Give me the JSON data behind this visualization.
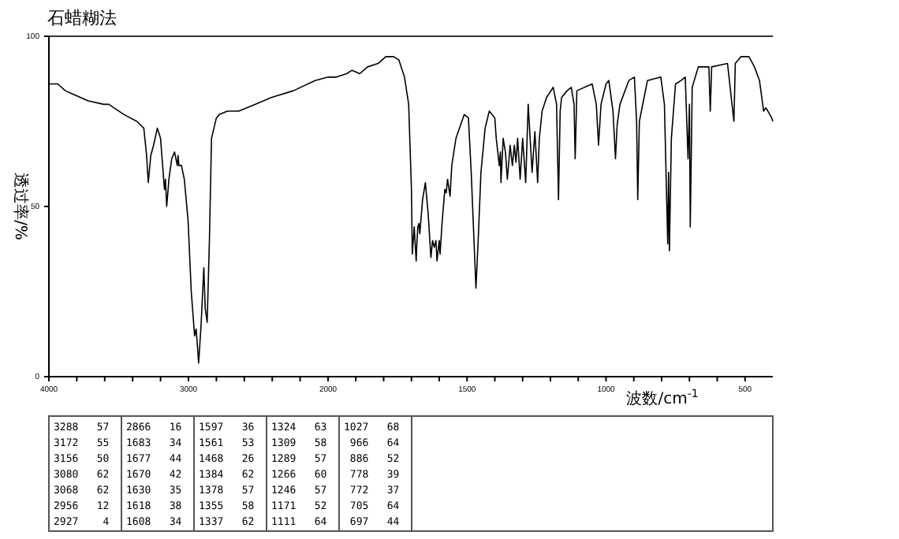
{
  "chart_data": [
    {
      "type": "line",
      "title": "石蜡糊法",
      "ylabel": "透过率/%",
      "xlim": [
        4000,
        2000
      ],
      "ylim": [
        0,
        100
      ],
      "xticks": [
        4000,
        {
          "value": 3800,
          "label": null
        },
        {
          "value": 3600,
          "label": null
        },
        {
          "value": 3400,
          "label": null
        },
        {
          "value": 3200,
          "label": null
        },
        3000,
        {
          "value": 2800,
          "label": null
        },
        {
          "value": 2600,
          "label": null
        },
        {
          "value": 2400,
          "label": null
        },
        {
          "value": 2200,
          "label": null
        }
      ],
      "yticks": [
        0,
        50,
        100
      ],
      "marker": "none",
      "line_style": "solid",
      "series": [
        {
          "color": "#000000",
          "x": [
            4000,
            3937,
            3882,
            3828,
            3718,
            3608,
            3571,
            3462,
            3370,
            3320,
            3300,
            3288,
            3270,
            3250,
            3223,
            3200,
            3172,
            3165,
            3156,
            3140,
            3120,
            3100,
            3080,
            3075,
            3068,
            3050,
            3030,
            3003,
            2980,
            2956,
            2945,
            2927,
            2910,
            2890,
            2880,
            2866,
            2850,
            2835,
            2800,
            2779,
            2721,
            2640,
            2523,
            2407,
            2248,
            2093,
            2000
          ],
          "values": [
            86,
            86,
            84,
            83,
            81,
            80,
            80,
            77,
            75,
            73,
            65,
            57,
            65,
            68,
            73,
            70,
            55,
            58,
            50,
            58,
            64,
            66,
            62,
            65,
            62,
            62,
            58,
            46,
            25,
            12,
            14,
            4,
            15,
            32,
            20,
            16,
            40,
            70,
            76,
            77,
            78,
            78,
            80,
            82,
            84,
            87,
            88
          ]
        }
      ]
    },
    {
      "type": "line",
      "xlabel": "波数/cm$^{-1}$",
      "xlim": [
        2000,
        400
      ],
      "ylim": [
        0,
        100
      ],
      "tick_labels": "x",
      "xticks": [
        2000,
        {
          "value": 1900,
          "label": null
        },
        {
          "value": 1800,
          "label": null
        },
        {
          "value": 1700,
          "label": null
        },
        {
          "value": 1600,
          "label": null
        },
        1500,
        {
          "value": 1400,
          "label": null
        },
        {
          "value": 1300,
          "label": null
        },
        {
          "value": 1200,
          "label": null
        },
        {
          "value": 1100,
          "label": null
        },
        1000,
        {
          "value": 900,
          "label": null
        },
        {
          "value": 800,
          "label": null
        },
        {
          "value": 700,
          "label": null
        },
        {
          "value": 600,
          "label": null
        },
        500
      ],
      "marker": "none",
      "line_style": "solid",
      "series": [
        {
          "color": "#000000",
          "x": [
            2000,
            1970,
            1933,
            1914,
            1886,
            1858,
            1820,
            1792,
            1764,
            1745,
            1725,
            1710,
            1700,
            1697,
            1690,
            1683,
            1680,
            1677,
            1673,
            1670,
            1660,
            1650,
            1640,
            1630,
            1624,
            1618,
            1612,
            1608,
            1600,
            1597,
            1590,
            1580,
            1575,
            1570,
            1561,
            1555,
            1540,
            1510,
            1495,
            1485,
            1475,
            1468,
            1460,
            1450,
            1435,
            1420,
            1400,
            1395,
            1384,
            1380,
            1378,
            1370,
            1362,
            1355,
            1345,
            1337,
            1330,
            1324,
            1318,
            1309,
            1300,
            1289,
            1280,
            1266,
            1256,
            1246,
            1240,
            1230,
            1214,
            1190,
            1178,
            1171,
            1165,
            1160,
            1140,
            1125,
            1115,
            1111,
            1105,
            1050,
            1035,
            1027,
            1018,
            1000,
            990,
            975,
            966,
            960,
            950,
            918,
            898,
            890,
            886,
            880,
            851,
            803,
            790,
            778,
            775,
            772,
            765,
            750,
            730,
            715,
            705,
            700,
            697,
            690,
            668,
            630,
            625,
            620,
            563,
            540,
            535,
            515,
            486,
            466,
            448,
            433,
            425,
            404,
            400
          ],
          "values": [
            88,
            88,
            89,
            90,
            89,
            91,
            92,
            94,
            94,
            93,
            88,
            80,
            55,
            36,
            44,
            34,
            40,
            44,
            45,
            42,
            52,
            57,
            48,
            35,
            40,
            38,
            40,
            34,
            40,
            36,
            45,
            55,
            54,
            58,
            53,
            62,
            70,
            77,
            76,
            60,
            40,
            26,
            40,
            60,
            73,
            78,
            76,
            70,
            62,
            66,
            57,
            70,
            66,
            58,
            68,
            62,
            68,
            63,
            70,
            58,
            70,
            57,
            80,
            60,
            72,
            57,
            70,
            78,
            82,
            85,
            80,
            52,
            78,
            82,
            84,
            85,
            80,
            64,
            84,
            86,
            80,
            68,
            80,
            86,
            87,
            78,
            64,
            74,
            80,
            87,
            88,
            75,
            52,
            75,
            87,
            88,
            80,
            39,
            60,
            37,
            70,
            86,
            87,
            88,
            64,
            80,
            44,
            85,
            91,
            91,
            78,
            91,
            92,
            75,
            92,
            94,
            94,
            91,
            87,
            78,
            79,
            76,
            75
          ]
        }
      ],
      "annotations": [
        "3288   57",
        "3172   55",
        "3156   50",
        "3080   62",
        "3068   62",
        "2956   12",
        "2927    4",
        "2866   16",
        "1683   34",
        "1677   44",
        "1670   42",
        "1630   35",
        "1618   38",
        "1608   34",
        "1597   36",
        "1561   53",
        "1468   26",
        "1384   62",
        "1378   57",
        "1355   58",
        "1337   62",
        "1324   63",
        "1309   58",
        "1289   57",
        "1266   60",
        "1246   57",
        "1171   52",
        "1111   64",
        "1027   68",
        " 966   64",
        " 886   52",
        " 778   39",
        " 772   37",
        " 705   64",
        " 697   44"
      ]
    }
  ]
}
